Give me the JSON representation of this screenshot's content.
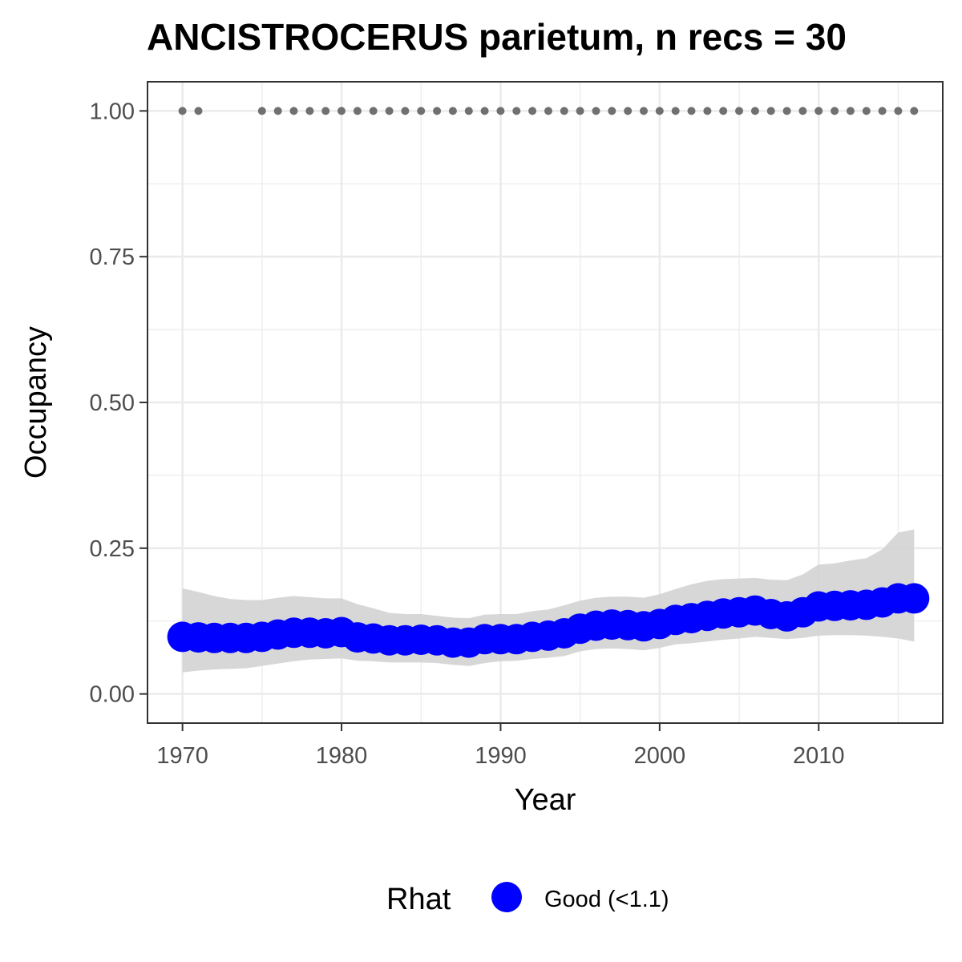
{
  "chart_data": {
    "type": "line",
    "title": "ANCISTROCERUS parietum, n recs = 30",
    "xlabel": "Year",
    "ylabel": "Occupancy",
    "xlim": [
      1967.8,
      2017.8
    ],
    "ylim": [
      -0.05,
      1.05
    ],
    "x_ticks": [
      1970,
      1980,
      1990,
      2000,
      2010
    ],
    "x_tick_labels": [
      "1970",
      "1980",
      "1990",
      "2000",
      "2010"
    ],
    "y_ticks": [
      0,
      0.25,
      0.5,
      0.75,
      1
    ],
    "y_tick_labels": [
      "0.00",
      "0.25",
      "0.50",
      "0.75",
      "1.00"
    ],
    "grid": true,
    "legend": {
      "title": "Rhat",
      "position": "bottom",
      "entries": [
        {
          "label": "Good (<1.1)",
          "color": "#0000ff"
        }
      ]
    },
    "colors": {
      "occupancy": "#0000ff",
      "ribbon": "#d3d3d3",
      "records": "#707070"
    },
    "x": [
      1970,
      1971,
      1972,
      1973,
      1974,
      1975,
      1976,
      1977,
      1978,
      1979,
      1980,
      1981,
      1982,
      1983,
      1984,
      1985,
      1986,
      1987,
      1988,
      1989,
      1990,
      1991,
      1992,
      1993,
      1994,
      1995,
      1996,
      1997,
      1998,
      1999,
      2000,
      2001,
      2002,
      2003,
      2004,
      2005,
      2006,
      2007,
      2008,
      2009,
      2010,
      2011,
      2012,
      2013,
      2014,
      2015,
      2016
    ],
    "series": [
      {
        "role": "estimate",
        "values": [
          0.098,
          0.097,
          0.096,
          0.096,
          0.096,
          0.098,
          0.102,
          0.105,
          0.105,
          0.104,
          0.106,
          0.097,
          0.095,
          0.092,
          0.092,
          0.093,
          0.092,
          0.088,
          0.088,
          0.094,
          0.094,
          0.094,
          0.098,
          0.1,
          0.104,
          0.112,
          0.117,
          0.119,
          0.118,
          0.116,
          0.12,
          0.127,
          0.13,
          0.134,
          0.138,
          0.14,
          0.143,
          0.137,
          0.133,
          0.14,
          0.15,
          0.151,
          0.152,
          0.153,
          0.157,
          0.164,
          0.164
        ]
      },
      {
        "role": "lower",
        "values": [
          0.037,
          0.04,
          0.042,
          0.043,
          0.044,
          0.048,
          0.052,
          0.056,
          0.059,
          0.06,
          0.061,
          0.057,
          0.056,
          0.054,
          0.054,
          0.054,
          0.053,
          0.05,
          0.048,
          0.053,
          0.056,
          0.057,
          0.06,
          0.062,
          0.065,
          0.073,
          0.077,
          0.078,
          0.077,
          0.075,
          0.079,
          0.085,
          0.087,
          0.09,
          0.093,
          0.095,
          0.098,
          0.096,
          0.094,
          0.096,
          0.1,
          0.101,
          0.101,
          0.1,
          0.098,
          0.095,
          0.09
        ]
      },
      {
        "role": "upper",
        "values": [
          0.181,
          0.175,
          0.168,
          0.163,
          0.161,
          0.161,
          0.165,
          0.168,
          0.166,
          0.164,
          0.164,
          0.154,
          0.147,
          0.139,
          0.137,
          0.137,
          0.134,
          0.131,
          0.13,
          0.136,
          0.137,
          0.137,
          0.142,
          0.145,
          0.152,
          0.16,
          0.165,
          0.167,
          0.167,
          0.165,
          0.171,
          0.18,
          0.188,
          0.194,
          0.197,
          0.198,
          0.199,
          0.196,
          0.195,
          0.205,
          0.222,
          0.224,
          0.229,
          0.233,
          0.248,
          0.277,
          0.282
        ]
      }
    ],
    "record_years": [
      1970,
      1971,
      1975,
      1976,
      1977,
      1978,
      1979,
      1980,
      1981,
      1982,
      1983,
      1984,
      1985,
      1986,
      1987,
      1988,
      1989,
      1990,
      1991,
      1992,
      1993,
      1994,
      1995,
      1996,
      1997,
      1998,
      1999,
      2000,
      2001,
      2002,
      2003,
      2004,
      2005,
      2006,
      2007,
      2008,
      2009,
      2010,
      2011,
      2012,
      2013,
      2014,
      2015,
      2016
    ],
    "record_value": 1
  }
}
